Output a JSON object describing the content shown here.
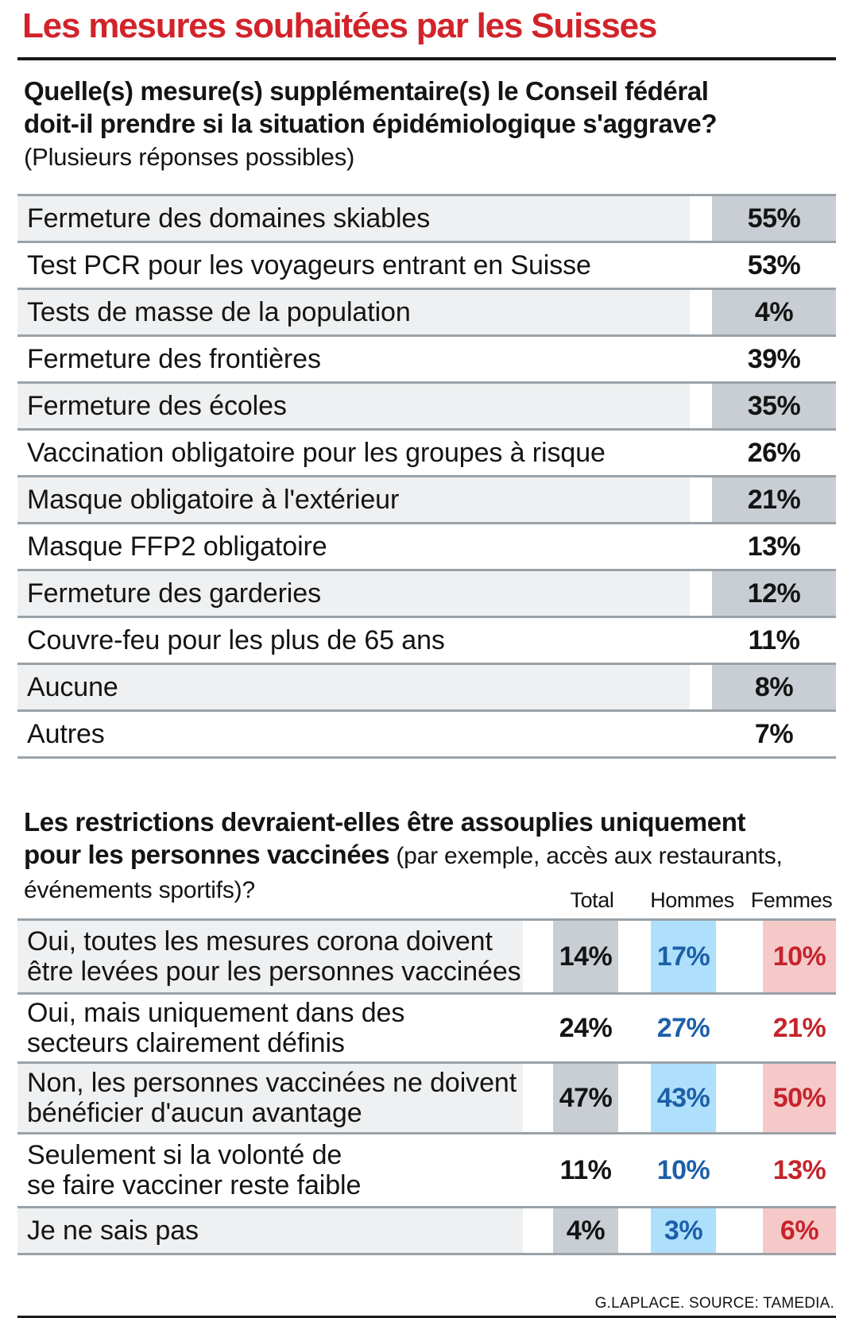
{
  "title": "Les mesures souhaitées par les Suisses",
  "source": "G.LAPLACE. SOURCE: TAMEDIA.",
  "chart_data": [
    {
      "type": "table",
      "question_bold_1": "Quelle(s) mesure(s) supplémentaire(s) le Conseil fédéral",
      "question_bold_2": "doit-il prendre si la situation épidémiologique s'aggrave?",
      "question_note": "(Plusieurs réponses possibles)",
      "rows": [
        {
          "label": "Fermeture des domaines skiables",
          "value": "55%"
        },
        {
          "label": "Test PCR pour les voyageurs entrant en Suisse",
          "value": "53%"
        },
        {
          "label": "Tests de masse de la population",
          "value": "4%"
        },
        {
          "label": "Fermeture des frontières",
          "value": "39%"
        },
        {
          "label": "Fermeture des écoles",
          "value": "35%"
        },
        {
          "label": "Vaccination obligatoire pour les groupes à risque",
          "value": "26%"
        },
        {
          "label": "Masque obligatoire à l'extérieur",
          "value": "21%"
        },
        {
          "label": "Masque FFP2 obligatoire",
          "value": "13%"
        },
        {
          "label": "Fermeture des garderies",
          "value": "12%"
        },
        {
          "label": "Couvre-feu pour les plus de 65 ans",
          "value": "11%"
        },
        {
          "label": "Aucune",
          "value": "8%"
        },
        {
          "label": "Autres",
          "value": "7%"
        }
      ]
    },
    {
      "type": "table",
      "question_bold_1": "Les restrictions devraient-elles être assouplies uniquement",
      "question_bold_2": "pour les personnes vaccinées",
      "question_note_1": " (par exemple, accès aux restaurants,",
      "question_note_2": "événements sportifs)?",
      "columns": [
        "Total",
        "Hommes",
        "Femmes"
      ],
      "rows": [
        {
          "label_1": "Oui, toutes les mesures corona doivent",
          "label_2": "être levées pour les personnes vaccinées",
          "total": "14%",
          "hommes": "17%",
          "femmes": "10%"
        },
        {
          "label_1": "Oui, mais uniquement dans des",
          "label_2": "secteurs clairement définis",
          "total": "24%",
          "hommes": "27%",
          "femmes": "21%"
        },
        {
          "label_1": "Non, les personnes vaccinées ne doivent",
          "label_2": "bénéficier d'aucun avantage",
          "total": "47%",
          "hommes": "43%",
          "femmes": "50%"
        },
        {
          "label_1": "Seulement si la volonté de",
          "label_2": "se faire vacciner reste faible",
          "total": "11%",
          "hommes": "10%",
          "femmes": "13%"
        },
        {
          "label_1": "Je ne sais pas",
          "label_2": "",
          "total": "4%",
          "hommes": "3%",
          "femmes": "6%"
        }
      ],
      "colors": {
        "total": "#c8ced3",
        "hommes": "#aee0fb",
        "femmes": "#f6c9c9",
        "hommes_text": "#1d5fa8",
        "femmes_text": "#c5242b"
      }
    }
  ]
}
